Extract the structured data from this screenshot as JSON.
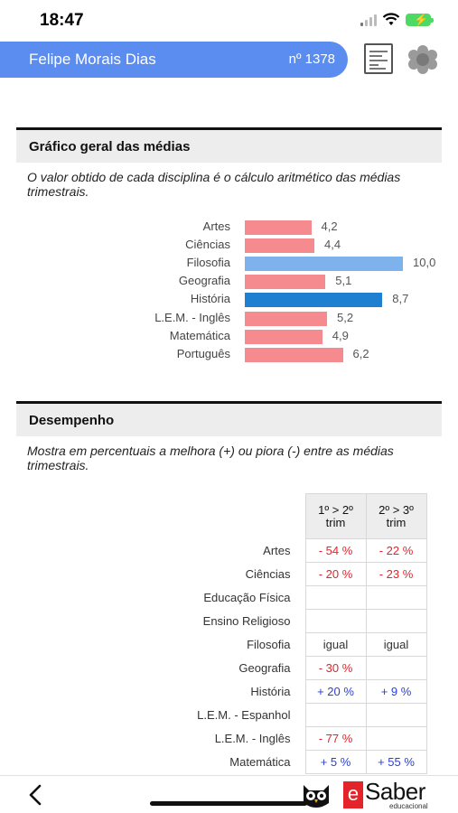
{
  "status_bar": {
    "time": "18:47"
  },
  "header": {
    "student_name": "Felipe Morais Dias",
    "student_number": "nº 1378"
  },
  "averages_section": {
    "title": "Gráfico geral das médias",
    "description": "O valor obtido de cada disciplina é o cálculo aritmético das médias trimestrais."
  },
  "chart_data": {
    "type": "bar",
    "orientation": "horizontal",
    "categories": [
      "Artes",
      "Ciências",
      "Filosofia",
      "Geografia",
      "História",
      "L.E.M. - Inglês",
      "Matemática",
      "Português"
    ],
    "values": [
      4.2,
      4.4,
      10.0,
      5.1,
      8.7,
      5.2,
      4.9,
      6.2
    ],
    "value_labels": [
      "4,2",
      "4,4",
      "10,0",
      "5,1",
      "8,7",
      "5,2",
      "4,9",
      "6,2"
    ],
    "xlim": [
      0,
      10
    ],
    "bar_colors": [
      "#f58a8f",
      "#f58a8f",
      "#7db2ec",
      "#f58a8f",
      "#1f7fd0",
      "#f58a8f",
      "#f58a8f",
      "#f58a8f"
    ]
  },
  "performance_section": {
    "title": "Desempenho",
    "description": "Mostra em percentuais a melhora (+) ou piora (-) entre as médias trimestrais.",
    "columns": [
      "1º > 2º trim",
      "2º > 3º trim"
    ],
    "rows": [
      {
        "subject": "Artes",
        "t1": "- 54 %",
        "t2": "- 22 %"
      },
      {
        "subject": "Ciências",
        "t1": "- 20 %",
        "t2": "- 23 %"
      },
      {
        "subject": "Educação Física",
        "t1": "",
        "t2": ""
      },
      {
        "subject": "Ensino Religioso",
        "t1": "",
        "t2": ""
      },
      {
        "subject": "Filosofia",
        "t1": "igual",
        "t2": "igual"
      },
      {
        "subject": "Geografia",
        "t1": "- 30 %",
        "t2": ""
      },
      {
        "subject": "História",
        "t1": "+ 20 %",
        "t2": "+ 9 %"
      },
      {
        "subject": "L.E.M. - Espanhol",
        "t1": "",
        "t2": ""
      },
      {
        "subject": "L.E.M. - Inglês",
        "t1": "- 77 %",
        "t2": ""
      },
      {
        "subject": "Matemática",
        "t1": "+ 5 %",
        "t2": "+ 55 %"
      }
    ]
  },
  "footer": {
    "logo_letter": "e",
    "logo_name": "Saber",
    "logo_sub": "educacional"
  },
  "icons": {
    "back": "chevron-left-icon",
    "report": "document-icon",
    "settings": "gear-icon",
    "mascot": "owl-icon"
  }
}
